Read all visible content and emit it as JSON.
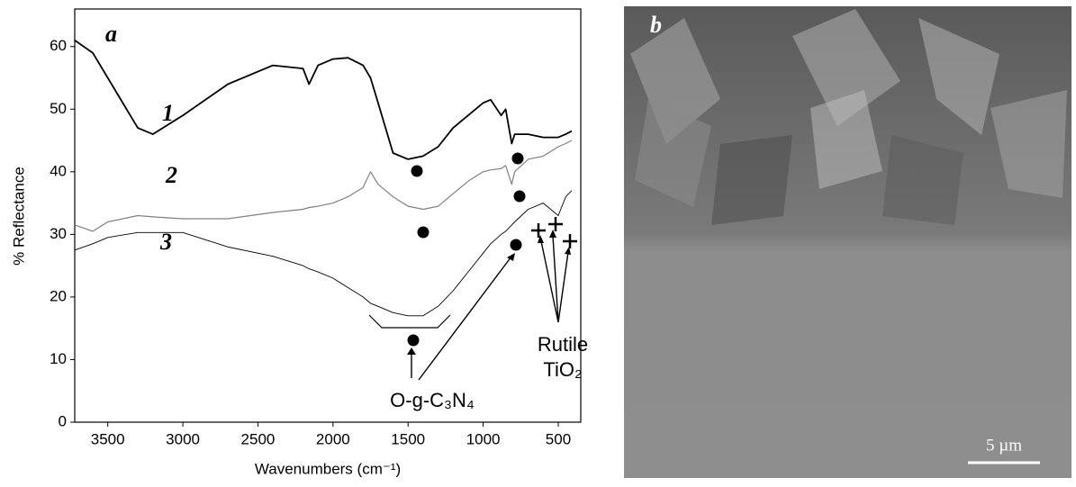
{
  "chart_data": {
    "type": "line",
    "panel_label": "a",
    "x_label": "Wavenumbers (cm⁻¹)",
    "y_label": "% Reflectance",
    "xlim": [
      3720,
      350
    ],
    "ylim": [
      0,
      66
    ],
    "xticks": [
      3500,
      3000,
      2500,
      2000,
      1500,
      1000,
      500
    ],
    "yticks": [
      0,
      10,
      20,
      30,
      40,
      50,
      60
    ],
    "x": [
      3720,
      3600,
      3500,
      3300,
      3200,
      3000,
      2700,
      2400,
      2200,
      2160,
      2100,
      2000,
      1900,
      1800,
      1750,
      1700,
      1600,
      1500,
      1400,
      1300,
      1200,
      1100,
      1000,
      950,
      880,
      850,
      810,
      790,
      700,
      600,
      500,
      450,
      410
    ],
    "series": [
      {
        "name": "1",
        "color": "#000000",
        "width": 1.8,
        "values": [
          61,
          59,
          55,
          47,
          46,
          49,
          54,
          57,
          56.5,
          54,
          57,
          58,
          58.2,
          57,
          55,
          51,
          43,
          42,
          42.5,
          44,
          47,
          49,
          51,
          51.5,
          49,
          50,
          44.5,
          46,
          46,
          45.5,
          45.5,
          46,
          46.5
        ]
      },
      {
        "name": "2",
        "color": "#808080",
        "width": 1.2,
        "values": [
          31.5,
          30.5,
          32,
          33,
          32.8,
          32.5,
          32.5,
          33.5,
          34,
          34.3,
          34.5,
          35,
          36,
          37.5,
          40,
          38,
          36,
          34.5,
          34,
          34.5,
          36.5,
          38.5,
          40,
          40.3,
          40.5,
          41,
          38,
          40,
          42,
          42.5,
          44,
          44.5,
          45
        ]
      },
      {
        "name": "3",
        "color": "#000000",
        "width": 0.9,
        "values": [
          27.5,
          28.5,
          29.5,
          30.3,
          30.3,
          30.3,
          28,
          26.5,
          25,
          24.5,
          24,
          23,
          21.5,
          20,
          19,
          18.5,
          17.5,
          17,
          17,
          18.5,
          21,
          24,
          27,
          28.5,
          30,
          30.5,
          31.5,
          32,
          34,
          35,
          33,
          36,
          37
        ]
      }
    ],
    "annotations": [
      "O-g-C₃N₄",
      "Rutile",
      "TiO₂"
    ]
  },
  "image_panel": {
    "label": "b",
    "scale_bar": "5 µm"
  }
}
